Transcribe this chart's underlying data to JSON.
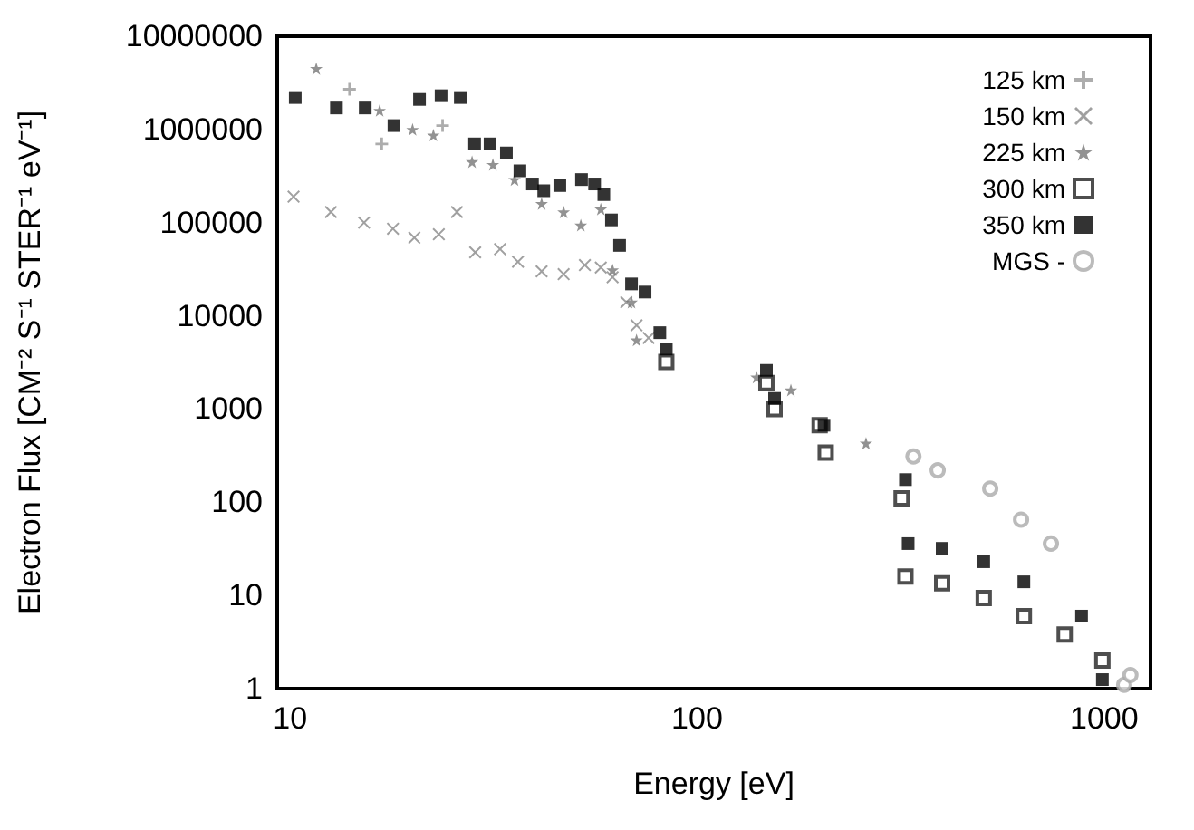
{
  "chart_data": {
    "type": "scatter",
    "xlabel": "Energy [eV]",
    "ylabel": "Electron Flux [CM⁻² S⁻¹ STER⁻¹ eV⁻¹]",
    "log": "xy",
    "xlim": [
      9.3,
      1300
    ],
    "xticks": [
      10,
      100,
      1000
    ],
    "ylim": [
      1,
      10000000
    ],
    "yticks": [
      1,
      10,
      100,
      1000,
      10000,
      100000,
      1000000,
      10000000
    ],
    "grid": false,
    "legend": "top right",
    "series": [
      {
        "name": "125 km",
        "color": "#999999",
        "marker": "plus",
        "x": [
          14,
          16.8,
          23.7
        ],
        "values": [
          2700000,
          700000,
          1100000
        ]
      },
      {
        "name": "150 km",
        "color": "#888888",
        "marker": "cross",
        "x": [
          10.2,
          12.6,
          15.2,
          17.9,
          20.2,
          23.2,
          25.7,
          28.5,
          32.8,
          36.3,
          41.5,
          47,
          53,
          58,
          62,
          67,
          71,
          76
        ],
        "values": [
          190000,
          130000,
          100000,
          86000,
          69000,
          75000,
          130000,
          48000,
          52000,
          38000,
          30000,
          28000,
          35000,
          33000,
          26000,
          14000,
          7900,
          5800
        ]
      },
      {
        "name": "225 km",
        "color": "#777777",
        "marker": "star",
        "x": [
          11.6,
          16.6,
          20,
          22.5,
          28,
          31.5,
          35.6,
          41.5,
          47,
          51.8,
          58,
          62,
          69,
          71,
          87,
          140,
          170,
          260
        ],
        "values": [
          4500000,
          1600000,
          1000000,
          870000,
          450000,
          420000,
          290000,
          160000,
          130000,
          94000,
          140000,
          31000,
          14000,
          5500,
          null,
          2200,
          1600,
          430
        ]
      },
      {
        "name": "300 km",
        "color": "#222222",
        "marker": "square_open",
        "x": [
          84,
          148,
          155,
          200,
          207,
          318,
          325,
          400,
          506,
          635,
          800,
          990
        ],
        "values": [
          3200,
          1900,
          1000,
          670,
          340,
          110,
          16,
          13.5,
          9.4,
          6,
          3.8,
          2
        ]
      },
      {
        "name": "350 km",
        "color": "#000000",
        "marker": "square",
        "x": [
          10.3,
          13,
          15.3,
          18,
          20.8,
          23.5,
          26.2,
          28.4,
          31,
          34,
          36.7,
          39.4,
          42,
          46,
          52,
          56,
          59,
          61.6,
          64.5,
          69,
          74.5,
          81,
          84,
          148,
          155,
          205,
          325,
          330,
          400,
          506,
          635,
          880,
          990
        ],
        "values": [
          2200000,
          1700000,
          1700000,
          1100000,
          2100000,
          2300000,
          2200000,
          700000,
          700000,
          560000,
          360000,
          260000,
          220000,
          250000,
          290000,
          260000,
          200000,
          107000,
          57000,
          22000,
          18000,
          6600,
          4400,
          2600,
          1300,
          670,
          175,
          36,
          32,
          23,
          14,
          6,
          1.25
        ]
      },
      {
        "name": "MGS -",
        "color": "#aaaaaa",
        "marker": "circle_dot",
        "x": [
          340,
          390,
          525,
          625,
          740,
          1120,
          1160
        ],
        "values": [
          310,
          220,
          140,
          65,
          36,
          1.1,
          1.4
        ]
      }
    ]
  }
}
